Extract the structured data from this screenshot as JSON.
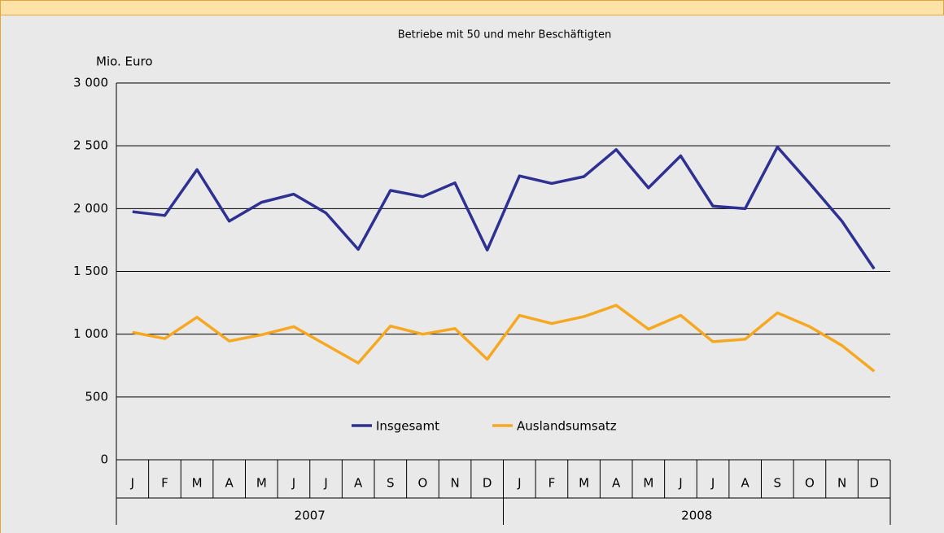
{
  "chart_data": {
    "type": "line",
    "title": "Betriebe mit 50 und mehr Beschäftigten",
    "y_label": "Mio. Euro",
    "categories": [
      "J",
      "F",
      "M",
      "A",
      "M",
      "J",
      "J",
      "A",
      "S",
      "O",
      "N",
      "D",
      "J",
      "F",
      "M",
      "A",
      "M",
      "J",
      "J",
      "A",
      "S",
      "O",
      "N",
      "D"
    ],
    "category_groups": [
      "2007",
      "2008"
    ],
    "series": [
      {
        "name": "Insgesamt",
        "color": "#2e3192",
        "values": [
          1975,
          1945,
          2310,
          1900,
          2050,
          2115,
          1965,
          1675,
          2145,
          2095,
          2205,
          1670,
          2260,
          2200,
          2255,
          2470,
          2165,
          2420,
          2020,
          2000,
          2490,
          2200,
          1900,
          1520
        ]
      },
      {
        "name": "Auslandsumsatz",
        "color": "#f7a823",
        "values": [
          1015,
          965,
          1135,
          945,
          995,
          1060,
          915,
          770,
          1065,
          1000,
          1045,
          800,
          1150,
          1085,
          1140,
          1230,
          1040,
          1150,
          940,
          960,
          1170,
          1060,
          910,
          705
        ]
      }
    ],
    "ylim": [
      0,
      3000
    ],
    "yticks": [
      0,
      500,
      {
        "value": 1000,
        "label": "1 000"
      },
      {
        "value": 1500,
        "label": "1 500"
      },
      {
        "value": 2000,
        "label": "2 000"
      },
      {
        "value": 2500,
        "label": "2 500"
      },
      {
        "value": 3000,
        "label": "3 000"
      }
    ],
    "grid": true,
    "legend": "bottom"
  }
}
